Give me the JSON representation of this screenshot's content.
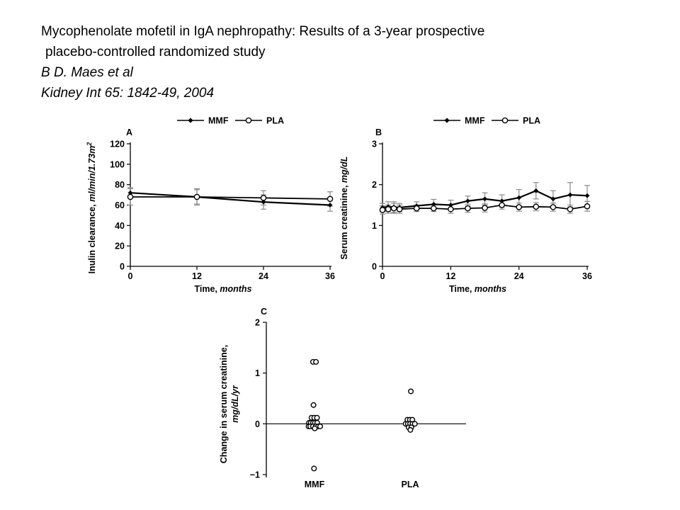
{
  "header": {
    "title_line1": "Mycophenolate mofetil in IgA nephropathy: Results of a 3-year prospective",
    "title_line2": "placebo-controlled randomized study",
    "authors": "B D. Maes et al",
    "citation": "Kidney Int 65: 1842-49, 2004"
  },
  "chart_data": [
    {
      "panel": "A",
      "type": "line",
      "xlabel_main": "Time, ",
      "xlabel_unit": "months",
      "ylabel_main": "Inulin clearance, ",
      "ylabel_unit": "ml/min/1.73m",
      "ylabel_sup": "2",
      "xlim": [
        0,
        36
      ],
      "ylim": [
        0,
        120
      ],
      "xticks": [
        0,
        12,
        24,
        36
      ],
      "yticks": [
        0,
        20,
        40,
        60,
        80,
        100,
        120
      ],
      "legend": "top-center",
      "series": [
        {
          "name": "MMF",
          "marker": "filled-diamond",
          "points": [
            {
              "x": 0,
              "y": 72,
              "err": 5
            },
            {
              "x": 12,
              "y": 68,
              "err": 8
            },
            {
              "x": 24,
              "y": 63,
              "err": 7
            },
            {
              "x": 36,
              "y": 60,
              "err": 6
            }
          ]
        },
        {
          "name": "PLA",
          "marker": "open-circle",
          "points": [
            {
              "x": 0,
              "y": 68,
              "err": 8
            },
            {
              "x": 12,
              "y": 68,
              "err": 7
            },
            {
              "x": 24,
              "y": 67,
              "err": 7
            },
            {
              "x": 36,
              "y": 66,
              "err": 7
            }
          ]
        }
      ]
    },
    {
      "panel": "B",
      "type": "line",
      "xlabel_main": "Time, ",
      "xlabel_unit": "months",
      "ylabel_main": "Serum creatinine, ",
      "ylabel_unit": "mg/dL",
      "ylabel_sup": "",
      "xlim": [
        0,
        36
      ],
      "ylim": [
        0,
        3
      ],
      "xticks": [
        0,
        12,
        24,
        36
      ],
      "yticks": [
        0,
        1,
        2,
        3
      ],
      "legend": "top-center",
      "series": [
        {
          "name": "MMF",
          "marker": "filled-diamond",
          "points": [
            {
              "x": 0,
              "y": 1.44,
              "err": 0.1
            },
            {
              "x": 1,
              "y": 1.46,
              "err": 0.12
            },
            {
              "x": 2,
              "y": 1.45,
              "err": 0.13
            },
            {
              "x": 3,
              "y": 1.44,
              "err": 0.1
            },
            {
              "x": 6,
              "y": 1.48,
              "err": 0.1
            },
            {
              "x": 9,
              "y": 1.52,
              "err": 0.12
            },
            {
              "x": 12,
              "y": 1.5,
              "err": 0.12
            },
            {
              "x": 15,
              "y": 1.6,
              "err": 0.12
            },
            {
              "x": 18,
              "y": 1.65,
              "err": 0.15
            },
            {
              "x": 21,
              "y": 1.6,
              "err": 0.15
            },
            {
              "x": 24,
              "y": 1.68,
              "err": 0.2
            },
            {
              "x": 27,
              "y": 1.85,
              "err": 0.2
            },
            {
              "x": 30,
              "y": 1.65,
              "err": 0.2
            },
            {
              "x": 33,
              "y": 1.75,
              "err": 0.3
            },
            {
              "x": 36,
              "y": 1.73,
              "err": 0.25
            }
          ]
        },
        {
          "name": "PLA",
          "marker": "open-circle",
          "points": [
            {
              "x": 0,
              "y": 1.38,
              "err": 0.1
            },
            {
              "x": 1,
              "y": 1.4,
              "err": 0.1
            },
            {
              "x": 2,
              "y": 1.42,
              "err": 0.12
            },
            {
              "x": 3,
              "y": 1.4,
              "err": 0.1
            },
            {
              "x": 6,
              "y": 1.42,
              "err": 0.08
            },
            {
              "x": 9,
              "y": 1.42,
              "err": 0.08
            },
            {
              "x": 12,
              "y": 1.4,
              "err": 0.1
            },
            {
              "x": 15,
              "y": 1.42,
              "err": 0.1
            },
            {
              "x": 18,
              "y": 1.43,
              "err": 0.1
            },
            {
              "x": 21,
              "y": 1.5,
              "err": 0.1
            },
            {
              "x": 24,
              "y": 1.45,
              "err": 0.1
            },
            {
              "x": 27,
              "y": 1.46,
              "err": 0.1
            },
            {
              "x": 30,
              "y": 1.45,
              "err": 0.1
            },
            {
              "x": 33,
              "y": 1.4,
              "err": 0.1
            },
            {
              "x": 36,
              "y": 1.47,
              "err": 0.12
            }
          ]
        }
      ]
    },
    {
      "panel": "C",
      "type": "scatter",
      "ylabel_main": "Change in serum creatinine,",
      "ylabel_unit": "mg/dL/yr",
      "ylim": [
        -1,
        2
      ],
      "yticks": [
        -1,
        0,
        1,
        2
      ],
      "ytick_labels": [
        "−1",
        "0",
        "1",
        "2"
      ],
      "categories": [
        "MMF",
        "PLA"
      ],
      "groups": [
        {
          "category": "MMF",
          "points": [
            {
              "dx": -0.3,
              "y": 1.22
            },
            {
              "dx": 0.3,
              "y": 1.22
            },
            {
              "dx": -0.2,
              "y": 0.37
            },
            {
              "dx": -0.6,
              "y": 0.12
            },
            {
              "dx": -0.05,
              "y": 0.12
            },
            {
              "dx": 0.5,
              "y": 0.12
            },
            {
              "dx": -1.1,
              "y": 0.02
            },
            {
              "dx": -0.75,
              "y": 0.02
            },
            {
              "dx": -0.3,
              "y": 0.02
            },
            {
              "dx": 0.1,
              "y": 0.02
            },
            {
              "dx": 0.55,
              "y": 0.02
            },
            {
              "dx": -1.2,
              "y": -0.05
            },
            {
              "dx": -0.85,
              "y": -0.05
            },
            {
              "dx": -0.3,
              "y": -0.05
            },
            {
              "dx": 0.25,
              "y": -0.05
            },
            {
              "dx": 0.75,
              "y": -0.05
            },
            {
              "dx": 1.15,
              "y": -0.05
            },
            {
              "dx": 0.05,
              "y": -0.09
            },
            {
              "dx": -0.1,
              "y": -0.88
            }
          ]
        },
        {
          "category": "PLA",
          "points": [
            {
              "dx": 0.15,
              "y": 0.64
            },
            {
              "dx": -0.55,
              "y": 0.08
            },
            {
              "dx": -0.05,
              "y": 0.08
            },
            {
              "dx": 0.45,
              "y": 0.08
            },
            {
              "dx": -0.9,
              "y": 0.0
            },
            {
              "dx": -0.45,
              "y": 0.0
            },
            {
              "dx": 0.0,
              "y": 0.0
            },
            {
              "dx": 0.5,
              "y": 0.0
            },
            {
              "dx": 0.95,
              "y": 0.0
            },
            {
              "dx": -0.3,
              "y": -0.07
            },
            {
              "dx": 0.25,
              "y": -0.07
            },
            {
              "dx": 0.05,
              "y": -0.12
            }
          ]
        }
      ]
    }
  ]
}
